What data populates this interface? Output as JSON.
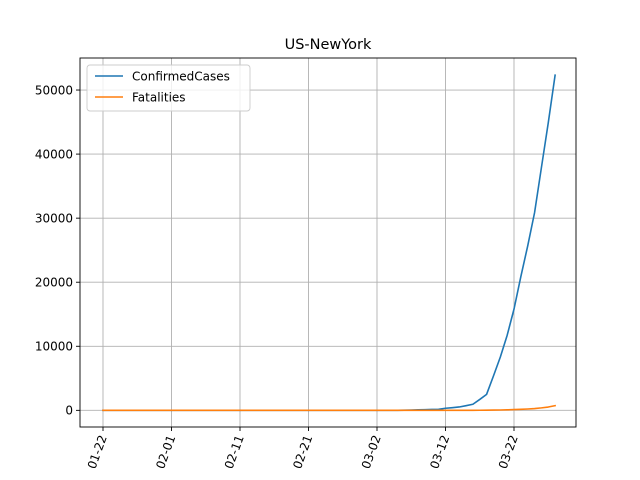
{
  "chart_data": {
    "type": "line",
    "title": "US-NewYork",
    "xlabel": "",
    "ylabel": "",
    "grid": true,
    "legend_position": "top-left",
    "x_start": "2020-01-22",
    "x": [
      "01-22",
      "01-23",
      "01-24",
      "01-25",
      "01-26",
      "01-27",
      "01-28",
      "01-29",
      "01-30",
      "01-31",
      "02-01",
      "02-02",
      "02-03",
      "02-04",
      "02-05",
      "02-06",
      "02-07",
      "02-08",
      "02-09",
      "02-10",
      "02-11",
      "02-12",
      "02-13",
      "02-14",
      "02-15",
      "02-16",
      "02-17",
      "02-18",
      "02-19",
      "02-20",
      "02-21",
      "02-22",
      "02-23",
      "02-24",
      "02-25",
      "02-26",
      "02-27",
      "02-28",
      "02-29",
      "03-01",
      "03-02",
      "03-03",
      "03-04",
      "03-05",
      "03-06",
      "03-07",
      "03-08",
      "03-09",
      "03-10",
      "03-11",
      "03-12",
      "03-13",
      "03-14",
      "03-15",
      "03-16",
      "03-17",
      "03-18",
      "03-19",
      "03-20",
      "03-21",
      "03-22",
      "03-23",
      "03-24",
      "03-25",
      "03-26",
      "03-27",
      "03-28"
    ],
    "xticks": [
      "01-22",
      "02-01",
      "02-11",
      "02-21",
      "03-02",
      "03-12",
      "03-22"
    ],
    "yticks": [
      0,
      10000,
      20000,
      30000,
      40000,
      50000
    ],
    "ylim": [
      -2600,
      55000
    ],
    "series": [
      {
        "name": "ConfirmedCases",
        "color": "#1f77b4",
        "values": [
          0,
          0,
          0,
          0,
          0,
          0,
          0,
          0,
          0,
          0,
          0,
          0,
          0,
          0,
          0,
          0,
          0,
          0,
          0,
          0,
          0,
          0,
          0,
          0,
          0,
          0,
          0,
          0,
          0,
          0,
          0,
          0,
          0,
          0,
          0,
          0,
          0,
          0,
          0,
          0,
          1,
          1,
          2,
          11,
          22,
          44,
          89,
          106,
          142,
          173,
          328,
          421,
          525,
          729,
          950,
          1700,
          2500,
          5365,
          8310,
          11710,
          15800,
          20884,
          25665,
          30841,
          37877,
          44876,
          52318
        ]
      },
      {
        "name": "Fatalities",
        "color": "#ff7f0e",
        "values": [
          0,
          0,
          0,
          0,
          0,
          0,
          0,
          0,
          0,
          0,
          0,
          0,
          0,
          0,
          0,
          0,
          0,
          0,
          0,
          0,
          0,
          0,
          0,
          0,
          0,
          0,
          0,
          0,
          0,
          0,
          0,
          0,
          0,
          0,
          0,
          0,
          0,
          0,
          0,
          0,
          0,
          0,
          0,
          0,
          0,
          0,
          0,
          0,
          0,
          0,
          0,
          0,
          2,
          3,
          7,
          13,
          20,
          38,
          56,
          76,
          114,
          156,
          210,
          285,
          385,
          519,
          728
        ]
      }
    ]
  }
}
